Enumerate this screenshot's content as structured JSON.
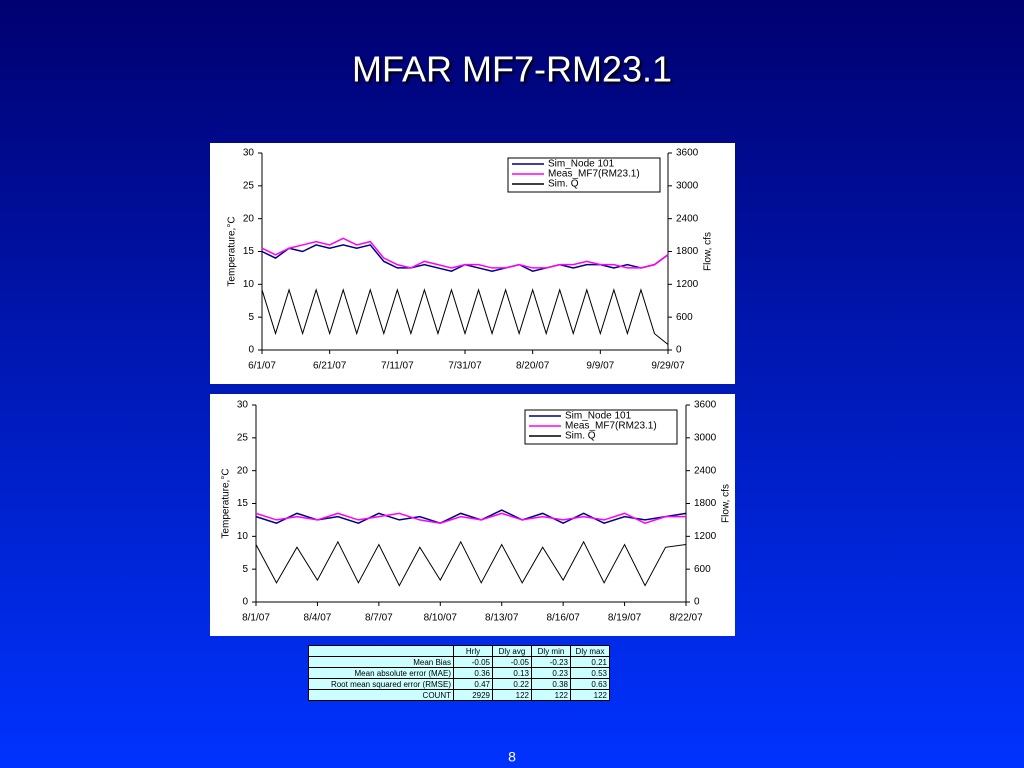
{
  "title": "MFAR MF7-RM23.1",
  "page_number": "8",
  "chart_data": [
    {
      "type": "line",
      "x": [
        "6/1/07",
        "6/5/07",
        "6/9/07",
        "6/13/07",
        "6/17/07",
        "6/21/07",
        "6/25/07",
        "6/29/07",
        "7/3/07",
        "7/7/07",
        "7/11/07",
        "7/15/07",
        "7/19/07",
        "7/23/07",
        "7/27/07",
        "7/31/07",
        "8/4/07",
        "8/8/07",
        "8/12/07",
        "8/16/07",
        "8/20/07",
        "8/24/07",
        "8/28/07",
        "9/1/07",
        "9/5/07",
        "9/9/07",
        "9/13/07",
        "9/17/07",
        "9/21/07",
        "9/25/07",
        "9/29/07"
      ],
      "xticks": [
        "6/1/07",
        "6/21/07",
        "7/11/07",
        "7/31/07",
        "8/20/07",
        "9/9/07",
        "9/29/07"
      ],
      "ylabel": "Temperature,°C",
      "y2label": "Flow, cfs",
      "ylim": [
        0,
        30
      ],
      "yticks": [
        0,
        5,
        10,
        15,
        20,
        25,
        30
      ],
      "y2lim": [
        0,
        3600
      ],
      "y2ticks": [
        0,
        600,
        1200,
        1800,
        2400,
        3000,
        3600
      ],
      "series": [
        {
          "name": "Sim_Node 101",
          "color": "#000080",
          "values": [
            15,
            14,
            15.5,
            15,
            16,
            15.5,
            16,
            15.5,
            16,
            13.5,
            12.5,
            12.5,
            13,
            12.5,
            12,
            13,
            12.5,
            12,
            12.5,
            13,
            12,
            12.5,
            13,
            12.5,
            13,
            13,
            12.5,
            13,
            12.5,
            13,
            14.5
          ]
        },
        {
          "name": "Meas_MF7(RM23.1)",
          "color": "#ff00ff",
          "values": [
            15.5,
            14.5,
            15.5,
            16,
            16.5,
            16,
            17,
            16,
            16.5,
            14,
            13,
            12.5,
            13.5,
            13,
            12.5,
            13,
            13,
            12.5,
            12.5,
            13,
            12.5,
            12.5,
            13,
            13,
            13.5,
            13,
            13,
            12.5,
            12.5,
            13,
            14.5
          ]
        },
        {
          "name": "Sim. Q",
          "color": "#000000",
          "axis": "y2",
          "values": [
            1100,
            300,
            1100,
            300,
            1100,
            300,
            1100,
            300,
            1100,
            300,
            1100,
            300,
            1100,
            300,
            1100,
            300,
            1100,
            300,
            1100,
            300,
            1100,
            300,
            1100,
            300,
            1100,
            300,
            1100,
            300,
            1100,
            300,
            100
          ]
        }
      ]
    },
    {
      "type": "line",
      "x": [
        "8/1/07",
        "8/2/07",
        "8/3/07",
        "8/4/07",
        "8/5/07",
        "8/6/07",
        "8/7/07",
        "8/8/07",
        "8/9/07",
        "8/10/07",
        "8/11/07",
        "8/12/07",
        "8/13/07",
        "8/14/07",
        "8/15/07",
        "8/16/07",
        "8/17/07",
        "8/18/07",
        "8/19/07",
        "8/20/07",
        "8/21/07",
        "8/22/07"
      ],
      "xticks": [
        "8/1/07",
        "8/4/07",
        "8/7/07",
        "8/10/07",
        "8/13/07",
        "8/16/07",
        "8/19/07",
        "8/22/07"
      ],
      "ylabel": "Temperature,°C",
      "y2label": "Flow, cfs",
      "ylim": [
        0,
        30
      ],
      "yticks": [
        0,
        5,
        10,
        15,
        20,
        25,
        30
      ],
      "y2lim": [
        0,
        3600
      ],
      "y2ticks": [
        0,
        600,
        1200,
        1800,
        2400,
        3000,
        3600
      ],
      "series": [
        {
          "name": "Sim_Node 101",
          "color": "#000080",
          "values": [
            13,
            12,
            13.5,
            12.5,
            13,
            12,
            13.5,
            12.5,
            13,
            12,
            13.5,
            12.5,
            14,
            12.5,
            13.5,
            12,
            13.5,
            12,
            13,
            12.5,
            13,
            13.5
          ]
        },
        {
          "name": "Meas_MF7(RM23.1)",
          "color": "#ff00ff",
          "values": [
            13.5,
            12.5,
            13,
            12.5,
            13.5,
            12.5,
            13,
            13.5,
            12.5,
            12,
            13,
            12.5,
            13.5,
            12.5,
            13,
            12.5,
            13,
            12.5,
            13.5,
            12,
            13,
            13
          ]
        },
        {
          "name": "Sim. Q",
          "color": "#000000",
          "axis": "y2",
          "values": [
            1050,
            350,
            1000,
            400,
            1100,
            350,
            1050,
            300,
            1000,
            400,
            1100,
            350,
            1050,
            350,
            1000,
            400,
            1100,
            350,
            1050,
            300,
            1000,
            1050
          ]
        }
      ]
    }
  ],
  "table": {
    "header": [
      "Hrly",
      "Dly avg",
      "Dly min",
      "Dly max"
    ],
    "rows": [
      [
        "Mean Bias",
        "-0.05",
        "-0.05",
        "-0.23",
        "0.21"
      ],
      [
        "Mean absolute error (MAE)",
        "0.36",
        "0.13",
        "0.23",
        "0.53"
      ],
      [
        "Root mean squared error (RMSE)",
        "0.47",
        "0.22",
        "0.38",
        "0.63"
      ],
      [
        "COUNT",
        "2929",
        "122",
        "122",
        "122"
      ]
    ]
  }
}
